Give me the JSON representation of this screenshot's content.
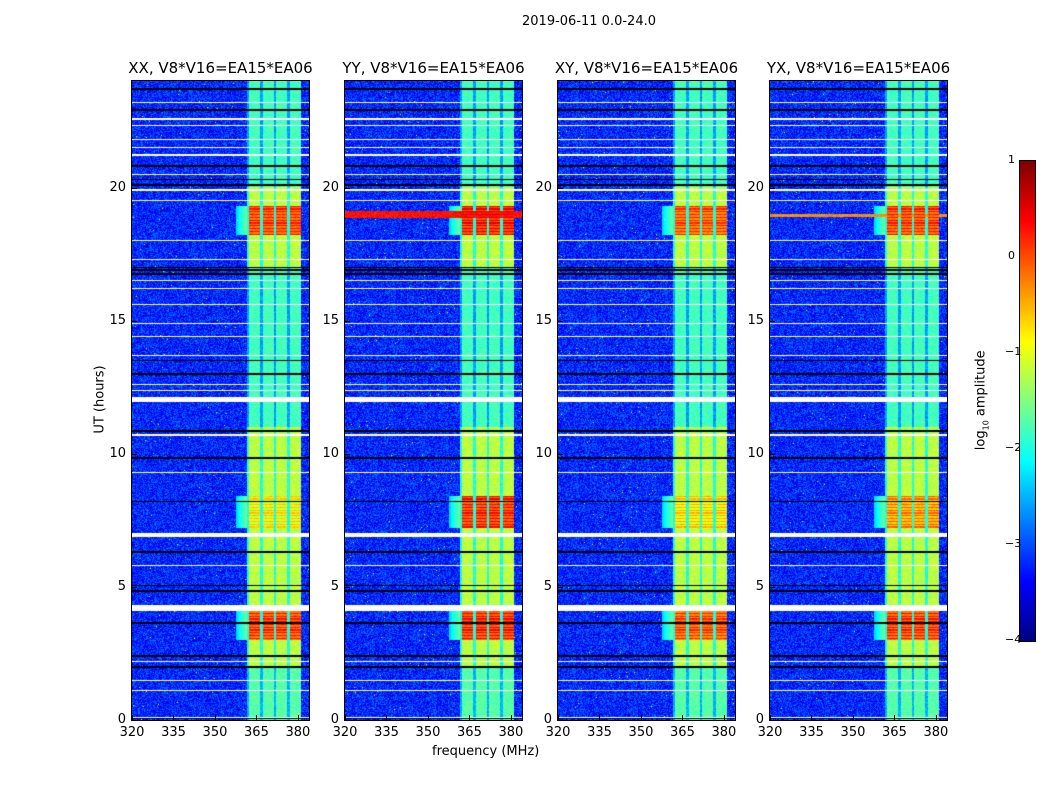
{
  "chart_data": {
    "type": "heatmap",
    "title": "2019-06-11 0.0-24.0",
    "xlabel": "frequency (MHz)",
    "ylabel": "UT (hours)",
    "xlim": [
      320,
      384
    ],
    "ylim": [
      0,
      24
    ],
    "xticks": [
      "320",
      "335",
      "350",
      "365",
      "380"
    ],
    "xtick_values": [
      320,
      335,
      350,
      365,
      380
    ],
    "yticks": [
      "0",
      "5",
      "10",
      "15",
      "20"
    ],
    "ytick_values": [
      0,
      5,
      10,
      15,
      20
    ],
    "panels": [
      {
        "title": "XX, V8*V16=EA15*EA06",
        "bursts": [
          [
            3.0,
            4.1,
            0.3
          ],
          [
            18.2,
            19.3,
            0.3
          ],
          [
            7.2,
            8.4,
            -0.6
          ]
        ],
        "broadband_line": null
      },
      {
        "title": "YY, V8*V16=EA15*EA06",
        "bursts": [
          [
            3.0,
            4.1,
            0.4
          ],
          [
            18.2,
            19.3,
            0.5
          ],
          [
            7.2,
            8.4,
            0.4
          ]
        ],
        "broadband_line": [
          18.85,
          19.1,
          0.3
        ]
      },
      {
        "title": "XY, V8*V16=EA15*EA06",
        "bursts": [
          [
            3.0,
            4.1,
            0.2
          ],
          [
            18.2,
            19.3,
            0.2
          ],
          [
            7.2,
            8.4,
            -0.5
          ]
        ],
        "broadband_line": null
      },
      {
        "title": "YX, V8*V16=EA15*EA06",
        "bursts": [
          [
            3.0,
            4.1,
            0.3
          ],
          [
            18.2,
            19.3,
            0.3
          ],
          [
            7.2,
            8.4,
            -0.1
          ]
        ],
        "broadband_line": [
          18.9,
          19.0,
          -0.3
        ]
      }
    ],
    "background_log_amplitude": -3.2,
    "rfi_band_mhz": [
      361.5,
      381
    ],
    "rfi_band_log_amplitude": -1.2,
    "flagged_ut_hours": [
      [
        1.45,
        1.52
      ],
      [
        4.1,
        4.32
      ],
      [
        6.88,
        7.03
      ],
      [
        11.95,
        12.12
      ],
      [
        12.35,
        12.4
      ],
      [
        19.85,
        19.95
      ],
      [
        22.3,
        22.35
      ],
      [
        22.55,
        22.6
      ],
      [
        21.2,
        21.25
      ]
    ],
    "colorbar": {
      "label": "log10 amplitude",
      "label_main": "log",
      "label_sub": "10",
      "label_rest": " amplitude",
      "range": [
        -4,
        1
      ],
      "ticks": [
        "1",
        "0",
        "−1",
        "−2",
        "−3",
        "−4"
      ],
      "tick_values": [
        1,
        0,
        -1,
        -2,
        -3,
        -4
      ],
      "colormap": "jet"
    }
  }
}
